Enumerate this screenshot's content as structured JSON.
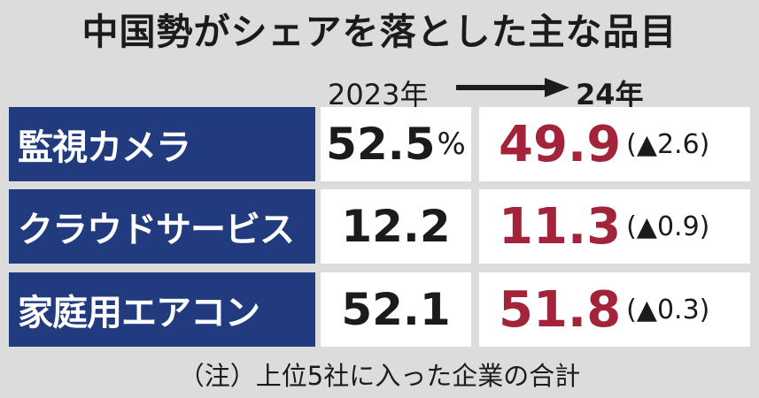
{
  "title": "中国勢がシェアを落とした主な品目",
  "header": {
    "from": "2023年",
    "to": "24年"
  },
  "note": "（注）上位5社に入った企業の合計",
  "colors": {
    "label_bg": "#223a7e",
    "value_2024": "#a3243a",
    "background": "#dcdcdc"
  },
  "chart_data": {
    "type": "table",
    "title": "中国勢がシェアを落とした主な品目",
    "columns": [
      "2023年",
      "24年"
    ],
    "rows": [
      {
        "label": "監視カメラ",
        "y2023": "52.5",
        "unit": "%",
        "y2024": "49.9",
        "change": "(▲2.6)"
      },
      {
        "label": "クラウドサービス",
        "y2023": "12.2",
        "unit": "",
        "y2024": "11.3",
        "change": "(▲0.9)"
      },
      {
        "label": "家庭用エアコン",
        "y2023": "52.1",
        "unit": "",
        "y2024": "51.8",
        "change": "(▲0.3)"
      }
    ]
  }
}
